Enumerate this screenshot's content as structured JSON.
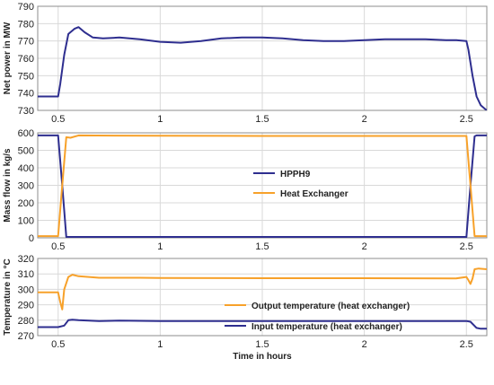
{
  "colors": {
    "navy": "#2e2e8f",
    "orange": "#f7a12a",
    "grid": "#d9d9d9",
    "axis": "#8c8c8c",
    "text": "#222222"
  },
  "chart_data": [
    {
      "type": "line",
      "ylabel": "Net power in MW",
      "xlabel": "",
      "xlim": [
        0.4,
        2.6
      ],
      "ylim": [
        730,
        790
      ],
      "xticks": [
        0.5,
        1,
        1.5,
        2,
        2.5
      ],
      "xtick_labels": [
        "0.5",
        "1",
        "1.5",
        "2",
        "2.5"
      ],
      "yticks": [
        730,
        740,
        750,
        760,
        770,
        780,
        790
      ],
      "ytick_labels": [
        "730",
        "740",
        "750",
        "760",
        "770",
        "780",
        "790"
      ],
      "grid": true,
      "legend": "none",
      "series": [
        {
          "color": "navy",
          "x": [
            0.4,
            0.5,
            0.51,
            0.53,
            0.55,
            0.58,
            0.6,
            0.63,
            0.67,
            0.72,
            0.8,
            0.9,
            1.0,
            1.1,
            1.2,
            1.3,
            1.4,
            1.5,
            1.6,
            1.7,
            1.8,
            1.9,
            2.0,
            2.1,
            2.2,
            2.3,
            2.4,
            2.45,
            2.5,
            2.51,
            2.53,
            2.55,
            2.57,
            2.59,
            2.6
          ],
          "y": [
            738,
            738,
            745,
            762,
            774,
            777,
            778,
            775,
            772,
            771.5,
            772,
            771,
            769.5,
            769,
            770,
            771.5,
            772,
            772,
            771.5,
            770.5,
            770,
            770,
            770.5,
            771,
            771,
            771,
            770.5,
            770.5,
            770,
            765,
            750,
            738,
            733,
            731,
            730
          ]
        }
      ]
    },
    {
      "type": "line",
      "ylabel": "Mass flow in kg/s",
      "xlabel": "",
      "xlim": [
        0.4,
        2.6
      ],
      "ylim": [
        0,
        600
      ],
      "xticks": [
        0.5,
        1,
        1.5,
        2,
        2.5
      ],
      "xtick_labels": [
        "0.5",
        "1",
        "1.5",
        "2",
        "2.5"
      ],
      "yticks": [
        0,
        100,
        200,
        300,
        400,
        500,
        600
      ],
      "ytick_labels": [
        "0",
        "100",
        "200",
        "300",
        "400",
        "500",
        "600"
      ],
      "grid": true,
      "legend": "center-left",
      "series": [
        {
          "name": "HPPH9",
          "color": "navy",
          "x": [
            0.4,
            0.5,
            0.52,
            0.54,
            0.6,
            1.0,
            1.5,
            2.0,
            2.48,
            2.5,
            2.52,
            2.54,
            2.55,
            2.6
          ],
          "y": [
            585,
            585,
            300,
            5,
            5,
            5,
            5,
            5,
            5,
            5,
            300,
            580,
            585,
            585
          ]
        },
        {
          "name": "Heat Exchanger",
          "color": "orange",
          "x": [
            0.4,
            0.5,
            0.52,
            0.54,
            0.56,
            0.6,
            1.0,
            1.5,
            2.0,
            2.48,
            2.5,
            2.52,
            2.54,
            2.55,
            2.6
          ],
          "y": [
            10,
            10,
            300,
            575,
            572,
            585,
            583,
            582,
            582,
            582,
            582,
            300,
            10,
            10,
            10
          ]
        }
      ]
    },
    {
      "type": "line",
      "ylabel": "Temperature in °C",
      "xlabel": "Time in hours",
      "xlim": [
        0.4,
        2.6
      ],
      "ylim": [
        270,
        320
      ],
      "xticks": [
        0.5,
        1,
        1.5,
        2,
        2.5
      ],
      "xtick_labels": [
        "0.5",
        "1",
        "1.5",
        "2",
        "2.5"
      ],
      "yticks": [
        270,
        280,
        290,
        300,
        310,
        320
      ],
      "ytick_labels": [
        "270",
        "280",
        "290",
        "300",
        "310",
        "320"
      ],
      "grid": true,
      "legend": "center",
      "series": [
        {
          "name": "Output temperature (heat exchanger)",
          "color": "orange",
          "x": [
            0.4,
            0.5,
            0.51,
            0.52,
            0.53,
            0.55,
            0.57,
            0.6,
            0.7,
            0.9,
            1.0,
            1.5,
            2.0,
            2.45,
            2.5,
            2.51,
            2.52,
            2.53,
            2.54,
            2.56,
            2.6
          ],
          "y": [
            298,
            298,
            292,
            287,
            300,
            308,
            309.5,
            308.5,
            307.5,
            307.5,
            307.3,
            307.2,
            307.2,
            307.1,
            308,
            306,
            303.5,
            307,
            313,
            313.5,
            313
          ]
        },
        {
          "name": "Input temperature (heat exchanger)",
          "color": "navy",
          "x": [
            0.4,
            0.5,
            0.53,
            0.55,
            0.57,
            0.6,
            0.7,
            0.8,
            1.0,
            1.5,
            2.0,
            2.5,
            2.52,
            2.55,
            2.57,
            2.6
          ],
          "y": [
            275.5,
            275.5,
            276.5,
            280,
            280.3,
            280,
            279.5,
            279.7,
            279.5,
            279.5,
            279.5,
            279.5,
            279,
            275,
            274.5,
            274.5
          ]
        }
      ]
    }
  ]
}
